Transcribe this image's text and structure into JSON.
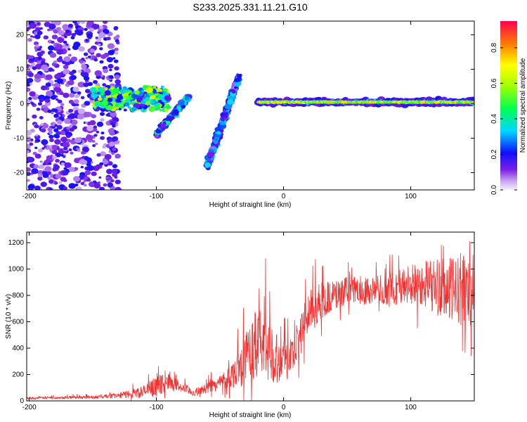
{
  "chart_data": [
    {
      "type": "heatmap",
      "title": "S233.2025.331.11.21.G10",
      "xlabel": "Height of straight line (km)",
      "ylabel": "Frequency (Hz)",
      "xlim": [
        -202,
        150
      ],
      "ylim": [
        -25,
        24
      ],
      "xticks": [
        -200,
        -100,
        0,
        100
      ],
      "xtick_labels": [
        "-200",
        "-100",
        "0",
        "100"
      ],
      "yticks": [
        20,
        10,
        0,
        -10,
        -20
      ],
      "ytick_labels": [
        "20",
        "10",
        "0",
        "-10",
        "-20"
      ],
      "colorbar": {
        "label": "Normalized spectral amplitude",
        "range": [
          0.0,
          0.95
        ],
        "ticks": [
          0.0,
          0.2,
          0.4,
          0.6,
          0.8
        ],
        "tick_labels": [
          "0.0",
          "0.2",
          "0.4",
          "0.6",
          "0.8"
        ]
      },
      "features": [
        {
          "name": "scattered noise",
          "x_range": [
            -202,
            -130
          ],
          "freq_range": [
            -25,
            24
          ],
          "amplitude": 0.15
        },
        {
          "name": "main ridge",
          "x_range": [
            -150,
            -90
          ],
          "freq_range": [
            -2,
            5
          ],
          "amplitude": 0.45
        },
        {
          "name": "diagonal streak 1",
          "x_range": [
            -100,
            -75
          ],
          "freq_range": [
            -9,
            2
          ],
          "amplitude": 0.3
        },
        {
          "name": "diagonal streak 2",
          "x_range": [
            -60,
            -35
          ],
          "freq_range": [
            -18,
            8
          ],
          "amplitude": 0.25
        },
        {
          "name": "steady line",
          "x_range": [
            -20,
            150
          ],
          "freq": 0.5,
          "amplitude": 0.7
        }
      ]
    },
    {
      "type": "line",
      "title": "",
      "xlabel": "Height of straight line (km)",
      "ylabel": "SNR (10 * v/v)",
      "xlim": [
        -202,
        150
      ],
      "ylim": [
        0,
        1280
      ],
      "xticks": [
        -200,
        -100,
        0,
        100
      ],
      "xtick_labels": [
        "-200",
        "-100",
        "0",
        "100"
      ],
      "yticks": [
        0,
        200,
        400,
        600,
        800,
        1000,
        1200
      ],
      "ytick_labels": [
        "0",
        "200",
        "400",
        "600",
        "800",
        "1000",
        "1200"
      ],
      "color": "#ee3333",
      "series": [
        {
          "name": "SNR",
          "x": [
            -202,
            -180,
            -150,
            -130,
            -110,
            -100,
            -90,
            -80,
            -70,
            -60,
            -50,
            -40,
            -30,
            -25,
            -20,
            -15,
            -10,
            -5,
            0,
            5,
            10,
            15,
            20,
            25,
            30,
            40,
            50,
            60,
            70,
            80,
            90,
            100,
            110,
            120,
            130,
            140,
            145,
            150
          ],
          "values": [
            20,
            25,
            30,
            40,
            70,
            110,
            150,
            100,
            60,
            100,
            140,
            200,
            320,
            380,
            420,
            450,
            360,
            330,
            320,
            330,
            380,
            560,
            680,
            720,
            760,
            800,
            830,
            840,
            840,
            840,
            860,
            880,
            900,
            870,
            830,
            850,
            860,
            850
          ],
          "spread": [
            8,
            10,
            12,
            20,
            50,
            80,
            60,
            40,
            30,
            40,
            60,
            100,
            200,
            250,
            300,
            280,
            220,
            200,
            180,
            160,
            150,
            160,
            160,
            150,
            140,
            120,
            110,
            110,
            110,
            120,
            140,
            160,
            180,
            220,
            250,
            280,
            300,
            260
          ]
        }
      ]
    }
  ]
}
